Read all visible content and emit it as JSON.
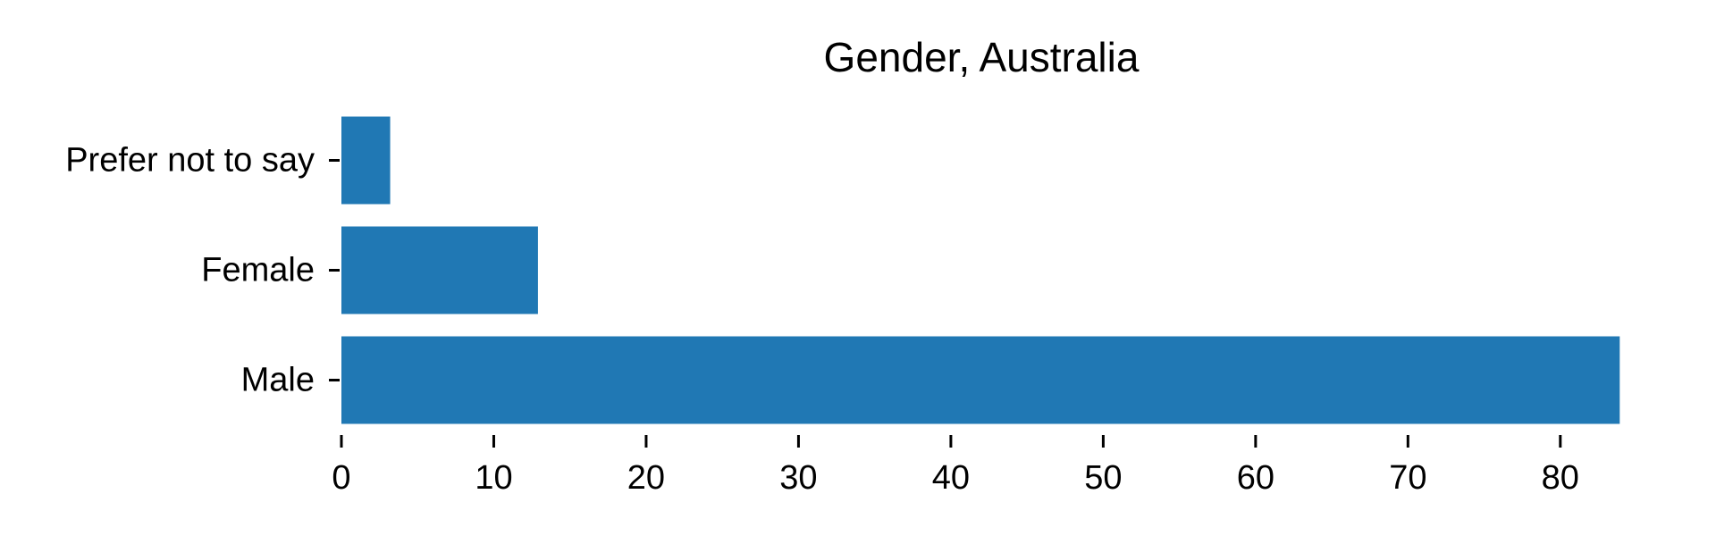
{
  "chart_data": {
    "type": "bar",
    "orientation": "horizontal",
    "title": "Gender, Australia",
    "xlabel": "",
    "ylabel": "",
    "categories": [
      "Male",
      "Female",
      "Prefer not to say"
    ],
    "values": [
      83.9,
      12.9,
      3.2
    ],
    "xlim": [
      0,
      84
    ],
    "xticks": [
      0,
      10,
      20,
      30,
      40,
      50,
      60,
      70,
      80
    ],
    "grid": false,
    "legend": "none",
    "colors": {
      "bar": "#2078b4"
    }
  }
}
